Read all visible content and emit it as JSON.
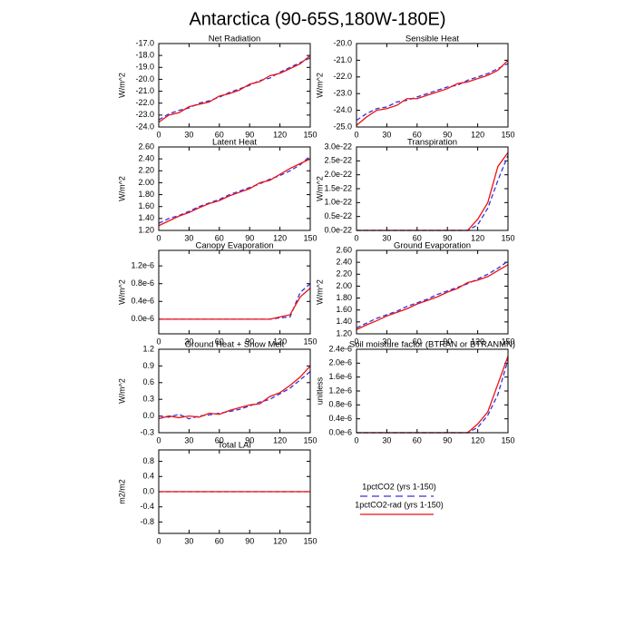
{
  "title": "Antarctica (90-65S,180W-180E)",
  "legend": [
    {
      "name": "1pctCO2 (yrs 1-150)",
      "color": "#3333dd",
      "dash": true
    },
    {
      "name": "1pctCO2-rad (yrs 1-150)",
      "color": "#ee1111",
      "dash": false
    }
  ],
  "chart_data": [
    {
      "type": "line",
      "title": "Net Radiation",
      "y_label": "W/m^2",
      "x": [
        0,
        10,
        20,
        30,
        40,
        50,
        60,
        70,
        80,
        90,
        100,
        110,
        120,
        130,
        140,
        150
      ],
      "xlim": [
        0,
        150
      ],
      "xticks": [
        0,
        30,
        60,
        90,
        120,
        150
      ],
      "ylim": [
        -24,
        -17
      ],
      "yticks": [
        {
          "value": -24,
          "label": "-24.0"
        },
        {
          "value": -23,
          "label": "-23.0"
        },
        {
          "value": -22,
          "label": "-22.0"
        },
        {
          "value": -21,
          "label": "-21.0"
        },
        {
          "value": -20,
          "label": "-20.0"
        },
        {
          "value": -19,
          "label": "-19.0"
        },
        {
          "value": -18,
          "label": "-18.0"
        },
        {
          "value": -17,
          "label": "-17.0"
        }
      ],
      "series": [
        {
          "values": [
            -23.4,
            -22.9,
            -22.6,
            -22.4,
            -22.0,
            -21.8,
            -21.5,
            -21.1,
            -20.8,
            -20.5,
            -20.1,
            -19.9,
            -19.4,
            -19.0,
            -18.6,
            -18.2
          ]
        },
        {
          "values": [
            -23.6,
            -23.0,
            -22.8,
            -22.3,
            -22.1,
            -21.9,
            -21.4,
            -21.2,
            -20.9,
            -20.4,
            -20.2,
            -19.7,
            -19.5,
            -19.1,
            -18.7,
            -18.0
          ]
        }
      ]
    },
    {
      "type": "line",
      "title": "Sensible Heat",
      "y_label": "W/m^2",
      "x": [
        0,
        10,
        20,
        30,
        40,
        50,
        60,
        70,
        80,
        90,
        100,
        110,
        120,
        130,
        140,
        150
      ],
      "xlim": [
        0,
        150
      ],
      "xticks": [
        0,
        30,
        60,
        90,
        120,
        150
      ],
      "ylim": [
        -25,
        -20
      ],
      "yticks": [
        {
          "value": -25,
          "label": "-25.0"
        },
        {
          "value": -24,
          "label": "-24.0"
        },
        {
          "value": -23,
          "label": "-23.0"
        },
        {
          "value": -22,
          "label": "-22.0"
        },
        {
          "value": -21,
          "label": "-21.0"
        },
        {
          "value": -20,
          "label": "-20.0"
        }
      ],
      "series": [
        {
          "values": [
            -24.6,
            -24.2,
            -23.9,
            -23.8,
            -23.5,
            -23.4,
            -23.2,
            -23.0,
            -22.8,
            -22.6,
            -22.5,
            -22.2,
            -22.0,
            -21.8,
            -21.5,
            -21.2
          ]
        },
        {
          "values": [
            -24.9,
            -24.4,
            -24.0,
            -23.9,
            -23.7,
            -23.3,
            -23.3,
            -23.1,
            -22.9,
            -22.7,
            -22.4,
            -22.3,
            -22.1,
            -21.9,
            -21.6,
            -21.0
          ]
        }
      ]
    },
    {
      "type": "line",
      "title": "Latent Heat",
      "y_label": "W/m^2",
      "x": [
        0,
        10,
        20,
        30,
        40,
        50,
        60,
        70,
        80,
        90,
        100,
        110,
        120,
        130,
        140,
        150
      ],
      "xlim": [
        0,
        150
      ],
      "xticks": [
        0,
        30,
        60,
        90,
        120,
        150
      ],
      "ylim": [
        1.2,
        2.6
      ],
      "yticks": [
        {
          "value": 1.2,
          "label": "1.20"
        },
        {
          "value": 1.4,
          "label": "1.40"
        },
        {
          "value": 1.6,
          "label": "1.60"
        },
        {
          "value": 1.8,
          "label": "1.80"
        },
        {
          "value": 2.0,
          "label": "2.00"
        },
        {
          "value": 2.2,
          "label": "2.20"
        },
        {
          "value": 2.4,
          "label": "2.40"
        },
        {
          "value": 2.6,
          "label": "2.60"
        }
      ],
      "series": [
        {
          "values": [
            1.32,
            1.4,
            1.45,
            1.52,
            1.6,
            1.66,
            1.72,
            1.8,
            1.86,
            1.92,
            1.98,
            2.06,
            2.12,
            2.2,
            2.3,
            2.45
          ]
        },
        {
          "values": [
            1.28,
            1.36,
            1.44,
            1.5,
            1.58,
            1.65,
            1.7,
            1.78,
            1.84,
            1.9,
            2.0,
            2.04,
            2.14,
            2.24,
            2.32,
            2.4
          ]
        }
      ]
    },
    {
      "type": "line",
      "title": "Transpiration",
      "y_label": "W/m^2",
      "x": [
        0,
        10,
        20,
        30,
        40,
        50,
        60,
        70,
        80,
        90,
        100,
        110,
        120,
        130,
        140,
        150
      ],
      "xlim": [
        0,
        150
      ],
      "xticks": [
        0,
        30,
        60,
        90,
        120,
        150
      ],
      "ylim": [
        0,
        3e-22
      ],
      "yticks": [
        {
          "value": 0,
          "label": "0.0e-22"
        },
        {
          "value": 5e-23,
          "label": "0.5e-22"
        },
        {
          "value": 1e-22,
          "label": "1.0e-22"
        },
        {
          "value": 1.5e-22,
          "label": "1.5e-22"
        },
        {
          "value": 2e-22,
          "label": "2.0e-22"
        },
        {
          "value": 2.5e-22,
          "label": "2.5e-22"
        },
        {
          "value": 3e-22,
          "label": "3.0e-22"
        }
      ],
      "series": [
        {
          "values": [
            0,
            0,
            0,
            0,
            0,
            0,
            0,
            0,
            0,
            0,
            0,
            0,
            2e-23,
            8e-23,
            1.8e-22,
            2.7e-22
          ]
        },
        {
          "values": [
            0,
            0,
            0,
            0,
            0,
            0,
            0,
            0,
            0,
            0,
            0,
            0,
            4e-23,
            1e-22,
            2.3e-22,
            2.8e-22
          ]
        }
      ]
    },
    {
      "type": "line",
      "title": "Canopy Evaporation",
      "y_label": "W/m^2",
      "x": [
        0,
        10,
        20,
        30,
        40,
        50,
        60,
        70,
        80,
        90,
        100,
        110,
        120,
        130,
        140,
        150
      ],
      "xlim": [
        0,
        150
      ],
      "xticks": [
        0,
        30,
        60,
        90,
        120,
        150
      ],
      "ylim": [
        -3.3e-07,
        1.55e-06
      ],
      "yticks": [
        {
          "value": 0,
          "label": "0.0e-6"
        },
        {
          "value": 4e-07,
          "label": "0.4e-6"
        },
        {
          "value": 8e-07,
          "label": "0.8e-6"
        },
        {
          "value": 1.2e-06,
          "label": "1.2e-6"
        }
      ],
      "series": [
        {
          "values": [
            0,
            0,
            0,
            0,
            0,
            0,
            0,
            0,
            0,
            0,
            0,
            0,
            3e-08,
            5e-08,
            6e-07,
            8e-07
          ]
        },
        {
          "values": [
            0,
            0,
            0,
            0,
            0,
            0,
            0,
            0,
            0,
            0,
            0,
            0,
            5e-08,
            1e-07,
            5e-07,
            7e-07
          ]
        }
      ]
    },
    {
      "type": "line",
      "title": "Ground Evaporation",
      "y_label": "W/m^2",
      "x": [
        0,
        10,
        20,
        30,
        40,
        50,
        60,
        70,
        80,
        90,
        100,
        110,
        120,
        130,
        140,
        150
      ],
      "xlim": [
        0,
        150
      ],
      "xticks": [
        0,
        30,
        60,
        90,
        120,
        150
      ],
      "ylim": [
        1.2,
        2.6
      ],
      "yticks": [
        {
          "value": 1.2,
          "label": "1.20"
        },
        {
          "value": 1.4,
          "label": "1.40"
        },
        {
          "value": 1.6,
          "label": "1.60"
        },
        {
          "value": 1.8,
          "label": "1.80"
        },
        {
          "value": 2.0,
          "label": "2.00"
        },
        {
          "value": 2.2,
          "label": "2.20"
        },
        {
          "value": 2.4,
          "label": "2.40"
        },
        {
          "value": 2.6,
          "label": "2.60"
        }
      ],
      "series": [
        {
          "values": [
            1.3,
            1.38,
            1.46,
            1.52,
            1.58,
            1.66,
            1.72,
            1.78,
            1.86,
            1.92,
            1.98,
            2.04,
            2.12,
            2.2,
            2.3,
            2.42
          ]
        },
        {
          "values": [
            1.27,
            1.35,
            1.42,
            1.5,
            1.56,
            1.62,
            1.7,
            1.76,
            1.82,
            1.9,
            1.96,
            2.06,
            2.1,
            2.16,
            2.26,
            2.36
          ]
        }
      ]
    },
    {
      "type": "line",
      "title": "Ground Heat + Snow Melt",
      "y_label": "W/m^2",
      "x": [
        0,
        10,
        20,
        30,
        40,
        50,
        60,
        70,
        80,
        90,
        100,
        110,
        120,
        130,
        140,
        150
      ],
      "xlim": [
        0,
        150
      ],
      "xticks": [
        0,
        30,
        60,
        90,
        120,
        150
      ],
      "ylim": [
        -0.3,
        1.2
      ],
      "yticks": [
        -0.3,
        {
          "value": 0,
          "label": "0.0"
        },
        0.3,
        0.6,
        0.9,
        1.2
      ],
      "series": [
        {
          "values": [
            0.0,
            -0.02,
            0.03,
            -0.05,
            0.0,
            0.02,
            0.05,
            0.08,
            0.12,
            0.18,
            0.25,
            0.3,
            0.4,
            0.5,
            0.65,
            0.8
          ]
        },
        {
          "values": [
            -0.05,
            0.0,
            -0.03,
            0.0,
            -0.02,
            0.05,
            0.03,
            0.1,
            0.15,
            0.2,
            0.22,
            0.35,
            0.42,
            0.55,
            0.7,
            0.9
          ]
        }
      ]
    },
    {
      "type": "line",
      "title": "Soil moisture factor (BTRAN or BTRANMN)",
      "y_label": "unitless",
      "x": [
        0,
        10,
        20,
        30,
        40,
        50,
        60,
        70,
        80,
        90,
        100,
        110,
        120,
        130,
        140,
        150
      ],
      "xlim": [
        0,
        150
      ],
      "xticks": [
        0,
        30,
        60,
        90,
        120,
        150
      ],
      "ylim": [
        0,
        2.4e-06
      ],
      "yticks": [
        {
          "value": 0,
          "label": "0.0e-6"
        },
        {
          "value": 4e-07,
          "label": "0.4e-6"
        },
        {
          "value": 8e-07,
          "label": "0.8e-6"
        },
        {
          "value": 1.2e-06,
          "label": "1.2e-6"
        },
        {
          "value": 1.6e-06,
          "label": "1.6e-6"
        },
        {
          "value": 2e-06,
          "label": "2.0e-6"
        },
        {
          "value": 2.4e-06,
          "label": "2.4e-6"
        }
      ],
      "series": [
        {
          "values": [
            0,
            0,
            0,
            0,
            0,
            0,
            0,
            0,
            0,
            0,
            0,
            0,
            1.5e-07,
            5e-07,
            1.1e-06,
            2.1e-06
          ]
        },
        {
          "values": [
            0,
            0,
            0,
            0,
            0,
            0,
            0,
            0,
            0,
            0,
            0,
            0,
            2.5e-07,
            6e-07,
            1.4e-06,
            2.2e-06
          ]
        }
      ]
    },
    {
      "type": "line",
      "title": "Total LAI",
      "y_label": "m2/m2",
      "x": [
        0,
        10,
        20,
        30,
        40,
        50,
        60,
        70,
        80,
        90,
        100,
        110,
        120,
        130,
        140,
        150
      ],
      "xlim": [
        0,
        150
      ],
      "xticks": [
        0,
        30,
        60,
        90,
        120,
        150
      ],
      "ylim": [
        -1.1,
        1.1
      ],
      "yticks": [
        -0.8,
        -0.4,
        {
          "value": 0,
          "label": "0.0"
        },
        0.4,
        0.8
      ],
      "series": [
        {
          "values": [
            0,
            0,
            0,
            0,
            0,
            0,
            0,
            0,
            0,
            0,
            0,
            0,
            0,
            0,
            0,
            0
          ]
        },
        {
          "values": [
            0,
            0,
            0,
            0,
            0,
            0,
            0,
            0,
            0,
            0,
            0,
            0,
            0,
            0,
            0,
            0
          ]
        }
      ]
    }
  ]
}
